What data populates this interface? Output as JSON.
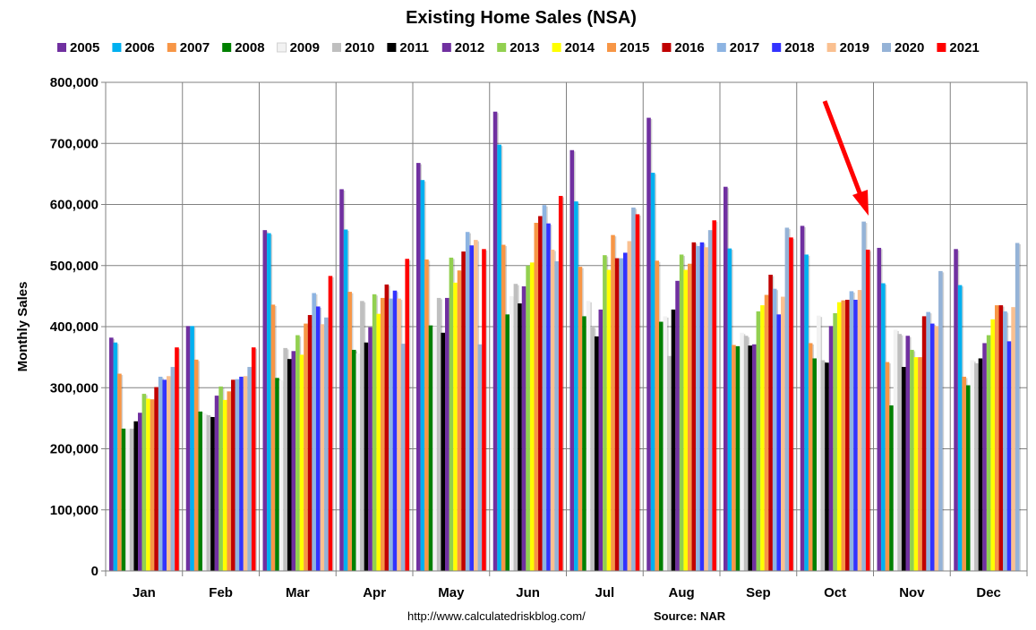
{
  "chart_data": {
    "type": "bar",
    "title": "Existing Home Sales (NSA)",
    "ylabel": "Monthly Sales",
    "xlabel": "",
    "ylim": [
      0,
      800000
    ],
    "yticks": [
      "0",
      "100,000",
      "200,000",
      "300,000",
      "400,000",
      "500,000",
      "600,000",
      "700,000",
      "800,000"
    ],
    "ytick_values": [
      0,
      100000,
      200000,
      300000,
      400000,
      500000,
      600000,
      700000,
      800000
    ],
    "grid": "on",
    "legend_position": "top",
    "categories": [
      "Jan",
      "Feb",
      "Mar",
      "Apr",
      "May",
      "Jun",
      "Jul",
      "Aug",
      "Sep",
      "Oct",
      "Nov",
      "Dec"
    ],
    "series": [
      {
        "name": "2005",
        "color": "#7030A0",
        "values": [
          382000,
          401000,
          558000,
          625000,
          668000,
          752000,
          689000,
          742000,
          629000,
          565000,
          529000,
          527000
        ]
      },
      {
        "name": "2006",
        "color": "#00B0F0",
        "values": [
          374000,
          401000,
          553000,
          559000,
          640000,
          698000,
          605000,
          652000,
          528000,
          518000,
          471000,
          468000
        ]
      },
      {
        "name": "2007",
        "color": "#F79646",
        "values": [
          323000,
          346000,
          436000,
          457000,
          510000,
          534000,
          498000,
          508000,
          370000,
          373000,
          342000,
          318000
        ]
      },
      {
        "name": "2008",
        "color": "#008000",
        "values": [
          233000,
          261000,
          316000,
          362000,
          402000,
          420000,
          417000,
          408000,
          368000,
          348000,
          271000,
          304000
        ]
      },
      {
        "name": "2009",
        "color": "#F2F2F2",
        "values": [
          233000,
          258000,
          312000,
          356000,
          400000,
          450000,
          442000,
          417000,
          390000,
          418000,
          395000,
          345000
        ]
      },
      {
        "name": "2010",
        "color": "#BFBFBF",
        "values": [
          233000,
          255000,
          365000,
          442000,
          447000,
          470000,
          400000,
          352000,
          385000,
          345000,
          388000,
          340000
        ]
      },
      {
        "name": "2011",
        "color": "#000000",
        "values": [
          245000,
          252000,
          347000,
          374000,
          390000,
          438000,
          384000,
          428000,
          369000,
          341000,
          334000,
          348000
        ]
      },
      {
        "name": "2012",
        "color": "#7030A0",
        "values": [
          259000,
          287000,
          360000,
          399000,
          447000,
          466000,
          428000,
          475000,
          371000,
          401000,
          385000,
          373000
        ]
      },
      {
        "name": "2013",
        "color": "#92D050",
        "values": [
          290000,
          302000,
          386000,
          453000,
          513000,
          500000,
          517000,
          518000,
          425000,
          422000,
          362000,
          386000
        ]
      },
      {
        "name": "2014",
        "color": "#FFFF00",
        "values": [
          282000,
          280000,
          354000,
          421000,
          472000,
          505000,
          493000,
          493000,
          435000,
          440000,
          350000,
          412000
        ]
      },
      {
        "name": "2015",
        "color": "#F79646",
        "values": [
          281000,
          294000,
          405000,
          447000,
          492000,
          570000,
          550000,
          503000,
          452000,
          443000,
          350000,
          435000
        ]
      },
      {
        "name": "2016",
        "color": "#C00000",
        "values": [
          301000,
          313000,
          419000,
          469000,
          523000,
          581000,
          512000,
          538000,
          485000,
          444000,
          417000,
          435000
        ]
      },
      {
        "name": "2017",
        "color": "#8DB4E2",
        "values": [
          318000,
          314000,
          455000,
          446000,
          555000,
          599000,
          512000,
          532000,
          462000,
          458000,
          424000,
          425000
        ]
      },
      {
        "name": "2018",
        "color": "#3333FF",
        "values": [
          313000,
          318000,
          433000,
          459000,
          533000,
          569000,
          521000,
          538000,
          420000,
          444000,
          405000,
          376000
        ]
      },
      {
        "name": "2019",
        "color": "#FAC090",
        "values": [
          319000,
          319000,
          404000,
          446000,
          542000,
          526000,
          540000,
          530000,
          449000,
          460000,
          401000,
          432000
        ]
      },
      {
        "name": "2020",
        "color": "#95B3D7",
        "values": [
          334000,
          334000,
          415000,
          372000,
          371000,
          507000,
          595000,
          558000,
          562000,
          572000,
          491000,
          537000
        ]
      },
      {
        "name": "2021",
        "color": "#FF0000",
        "values": [
          366000,
          366000,
          483000,
          511000,
          527000,
          614000,
          584000,
          574000,
          546000,
          526000,
          null,
          null
        ]
      }
    ],
    "annotations": [
      "red-arrow-pointing-to-oct-2021"
    ],
    "footer_url": "http://www.calculatedriskblog.com/",
    "footer_source": "Source: NAR"
  }
}
